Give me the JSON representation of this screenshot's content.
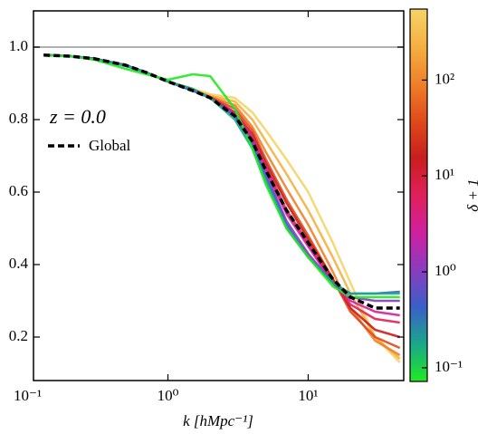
{
  "chart_data": {
    "type": "line",
    "xlabel": "k [hMpc⁻¹]",
    "annotation": "z = 0.0",
    "xscale": "log",
    "xlim": [
      0.11,
      48
    ],
    "xticks": [
      {
        "value": 0.1,
        "label": "10⁻¹"
      },
      {
        "value": 1,
        "label": "10⁰"
      },
      {
        "value": 10,
        "label": "10¹"
      }
    ],
    "ylim": [
      0.08,
      1.1
    ],
    "yticks": [
      0.2,
      0.4,
      0.6,
      0.8,
      {
        "value": 1,
        "label": "1.0"
      }
    ],
    "hline": {
      "value": 1,
      "color": "#b0b0b0"
    },
    "x": [
      0.13,
      0.2,
      0.3,
      0.5,
      0.7,
      1,
      1.5,
      2,
      3,
      4,
      5,
      7,
      10,
      15,
      20,
      30,
      45
    ],
    "series": [
      {
        "color": "#f5d468",
        "values": [
          0.978,
          0.975,
          0.968,
          0.95,
          0.93,
          0.905,
          0.885,
          0.87,
          0.86,
          0.82,
          0.77,
          0.69,
          0.6,
          0.46,
          0.35,
          0.2,
          0.13
        ]
      },
      {
        "color": "#f5b040",
        "values": [
          0.978,
          0.975,
          0.968,
          0.95,
          0.93,
          0.905,
          0.883,
          0.866,
          0.85,
          0.8,
          0.74,
          0.65,
          0.55,
          0.42,
          0.32,
          0.2,
          0.14
        ]
      },
      {
        "color": "#f0802a",
        "values": [
          0.978,
          0.975,
          0.968,
          0.95,
          0.93,
          0.905,
          0.882,
          0.863,
          0.84,
          0.78,
          0.71,
          0.61,
          0.51,
          0.38,
          0.28,
          0.19,
          0.15
        ]
      },
      {
        "color": "#e04a1a",
        "values": [
          0.978,
          0.975,
          0.968,
          0.95,
          0.93,
          0.905,
          0.881,
          0.862,
          0.83,
          0.77,
          0.69,
          0.58,
          0.48,
          0.36,
          0.27,
          0.2,
          0.17
        ]
      },
      {
        "color": "#c81e1e",
        "values": [
          0.978,
          0.975,
          0.968,
          0.95,
          0.93,
          0.905,
          0.88,
          0.861,
          0.82,
          0.76,
          0.68,
          0.57,
          0.47,
          0.36,
          0.28,
          0.22,
          0.2
        ]
      },
      {
        "color": "#e0205a",
        "values": [
          0.978,
          0.975,
          0.968,
          0.95,
          0.93,
          0.905,
          0.88,
          0.86,
          0.82,
          0.75,
          0.67,
          0.55,
          0.46,
          0.35,
          0.29,
          0.25,
          0.24
        ]
      },
      {
        "color": "#d020a0",
        "values": [
          0.978,
          0.975,
          0.968,
          0.95,
          0.93,
          0.905,
          0.88,
          0.86,
          0.815,
          0.745,
          0.66,
          0.54,
          0.45,
          0.35,
          0.3,
          0.27,
          0.26
        ]
      },
      {
        "color": "#8a3cc0",
        "values": [
          0.978,
          0.975,
          0.968,
          0.95,
          0.93,
          0.905,
          0.88,
          0.86,
          0.81,
          0.735,
          0.65,
          0.52,
          0.43,
          0.35,
          0.31,
          0.3,
          0.3
        ]
      },
      {
        "color": "#3a5fc8",
        "values": [
          0.978,
          0.975,
          0.968,
          0.95,
          0.93,
          0.905,
          0.88,
          0.86,
          0.81,
          0.73,
          0.64,
          0.51,
          0.42,
          0.35,
          0.32,
          0.32,
          0.325
        ]
      },
      {
        "color": "#1aa88a",
        "values": [
          0.978,
          0.975,
          0.967,
          0.948,
          0.93,
          0.905,
          0.885,
          0.86,
          0.8,
          0.72,
          0.63,
          0.5,
          0.42,
          0.35,
          0.32,
          0.32,
          0.32
        ]
      },
      {
        "color": "#22e822",
        "values": [
          0.978,
          0.975,
          0.965,
          0.94,
          0.925,
          0.91,
          0.925,
          0.92,
          0.83,
          0.72,
          0.62,
          0.5,
          0.42,
          0.34,
          0.31,
          0.31,
          0.31
        ]
      },
      {
        "name": "Global",
        "color": "#000000",
        "dashed": true,
        "values": [
          0.978,
          0.975,
          0.968,
          0.95,
          0.93,
          0.905,
          0.88,
          0.86,
          0.81,
          0.74,
          0.66,
          0.55,
          0.46,
          0.36,
          0.31,
          0.28,
          0.28
        ]
      }
    ],
    "colorbar": {
      "label": "δ + 1",
      "scale": "log",
      "lim": [
        0.072,
        550
      ],
      "ticks": [
        {
          "value": 0.1,
          "label": "10⁻¹"
        },
        {
          "value": 1,
          "label": "10⁰"
        },
        {
          "value": 10,
          "label": "10¹"
        },
        {
          "value": 100,
          "label": "10²"
        }
      ],
      "colors": [
        "#22e822",
        "#1aa88a",
        "#3a5fc8",
        "#8a3cc0",
        "#d020a0",
        "#e0205a",
        "#c81e1e",
        "#e04a1a",
        "#f0802a",
        "#f5b040",
        "#f5d468"
      ]
    }
  }
}
